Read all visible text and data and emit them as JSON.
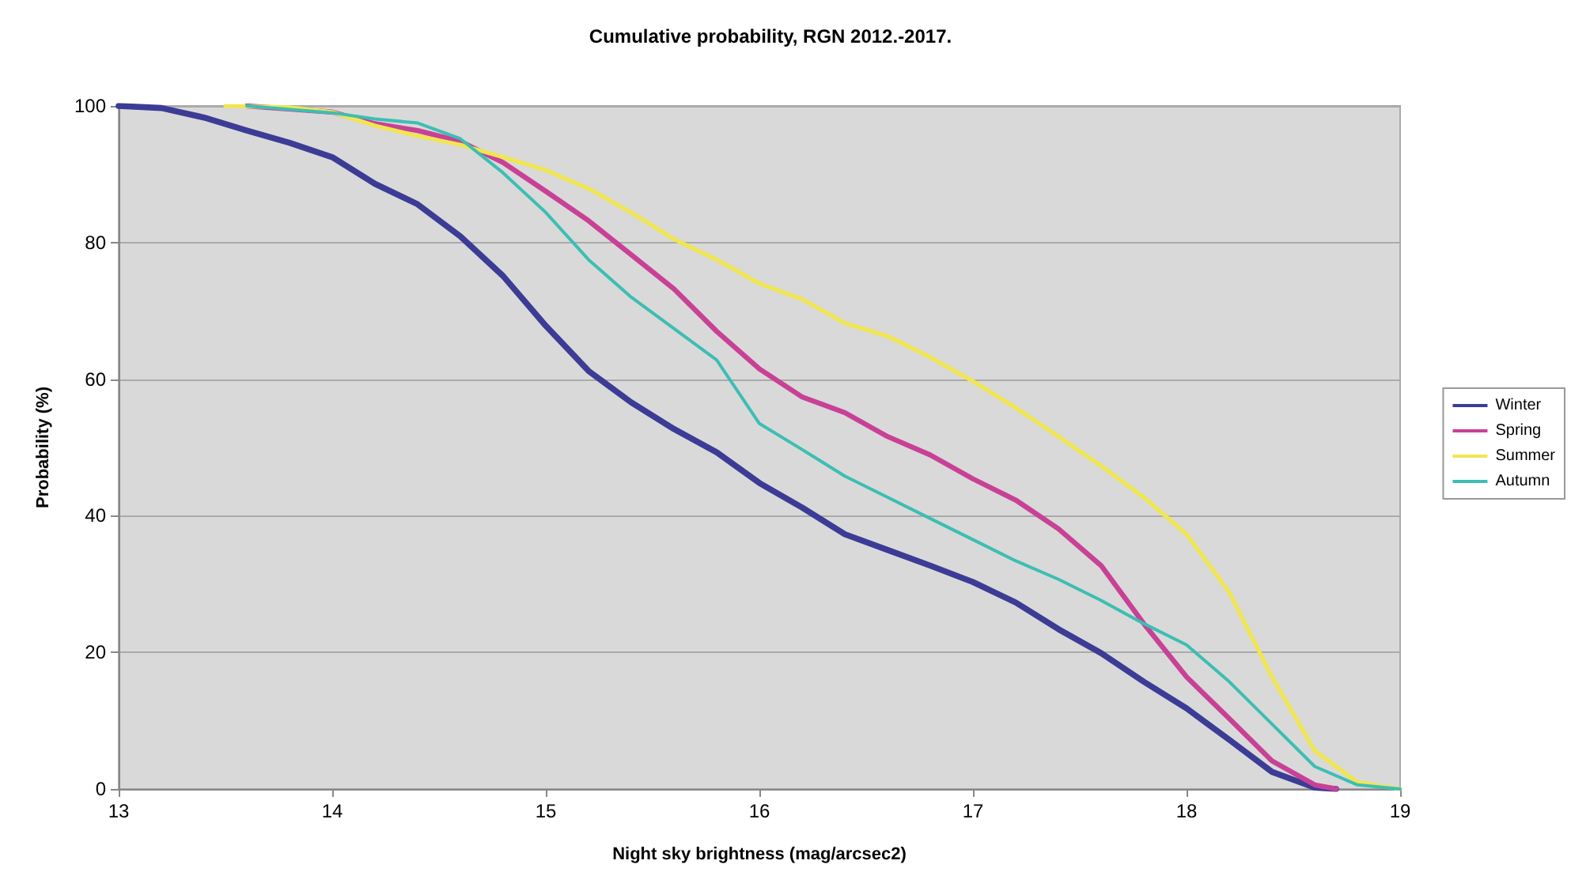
{
  "chart_data": {
    "type": "line",
    "title": "Cumulative probability, RGN 2012.-2017.",
    "xlabel": "Night sky brightness (mag/arcsec2)",
    "ylabel": "Probability (%)",
    "xlim": [
      13,
      19
    ],
    "xticks": [
      13,
      14,
      15,
      16,
      17,
      18,
      19
    ],
    "ylim": [
      0,
      100
    ],
    "yticks": [
      0,
      20,
      40,
      60,
      80,
      100
    ],
    "grid": "y",
    "legend": "right",
    "marker": "none",
    "line_style": "solid",
    "series": [
      {
        "name": "Winter",
        "color": "#3c3c96",
        "x": [
          13,
          13.2,
          13.4,
          13.6,
          13.8,
          14,
          14.2,
          14.4,
          14.6,
          14.8,
          15,
          15.2,
          15.4,
          15.6,
          15.8,
          16,
          16.2,
          16.4,
          16.6,
          16.8,
          17,
          17.2,
          17.4,
          17.6,
          17.8,
          18,
          18.2,
          18.4,
          18.6,
          18.7
        ],
        "values": [
          100,
          99.7,
          98.3,
          96.4,
          94.6,
          92.5,
          88.6,
          85.6,
          80.9,
          75.1,
          67.8,
          61.2,
          56.6,
          52.7,
          49.3,
          44.8,
          41.2,
          37.3,
          35,
          32.7,
          30.3,
          27.3,
          23.4,
          19.9,
          15.7,
          11.8,
          7.2,
          2.5,
          0.2,
          0
        ]
      },
      {
        "name": "Spring",
        "color": "#c84196",
        "x": [
          13.6,
          14,
          14.2,
          14.4,
          14.6,
          14.8,
          15,
          15.2,
          15.4,
          15.6,
          15.8,
          16,
          16.2,
          16.4,
          16.6,
          16.8,
          17,
          17.2,
          17.4,
          17.6,
          17.8,
          18,
          18.2,
          18.4,
          18.6,
          18.7
        ],
        "values": [
          100,
          99.1,
          97.4,
          96.4,
          94.8,
          91.7,
          87.5,
          83.2,
          78.2,
          73.2,
          67,
          61.5,
          57.4,
          55.1,
          51.6,
          48.9,
          45.4,
          42.3,
          38.1,
          32.7,
          24.2,
          16.4,
          10.3,
          4.1,
          0.6,
          0
        ]
      },
      {
        "name": "Summer",
        "color": "#f0e650",
        "x": [
          13.5,
          13.8,
          14,
          14.2,
          14.4,
          14.6,
          14.8,
          15,
          15.2,
          15.4,
          15.6,
          15.8,
          16,
          16.2,
          16.4,
          16.6,
          16.8,
          17,
          17.2,
          17.4,
          17.6,
          17.8,
          18,
          18.2,
          18.4,
          18.6,
          18.8,
          19
        ],
        "values": [
          100,
          99.8,
          99.1,
          97.1,
          95.6,
          94.3,
          92.5,
          90.6,
          87.9,
          84.4,
          80.5,
          77.5,
          74,
          71.7,
          68.2,
          66.3,
          63.2,
          59.7,
          55.8,
          51.6,
          47.3,
          42.7,
          37.3,
          28.8,
          16.4,
          5.6,
          1,
          0
        ]
      },
      {
        "name": "Autumn",
        "color": "#3cbeb4",
        "x": [
          13.6,
          14,
          14.2,
          14.4,
          14.6,
          14.8,
          15,
          15.2,
          15.4,
          15.6,
          15.8,
          16,
          16.2,
          16.4,
          16.6,
          16.8,
          17,
          17.2,
          17.4,
          17.6,
          17.8,
          18,
          18.2,
          18.4,
          18.6,
          18.8,
          19
        ],
        "values": [
          100,
          99,
          98.1,
          97.5,
          95.2,
          90.2,
          84.4,
          77.5,
          72,
          67.4,
          62.8,
          53.5,
          49.7,
          45.8,
          42.7,
          39.6,
          36.5,
          33.4,
          30.7,
          27.6,
          24.2,
          21.1,
          15.7,
          9.5,
          3.3,
          0.6,
          0
        ]
      }
    ]
  }
}
